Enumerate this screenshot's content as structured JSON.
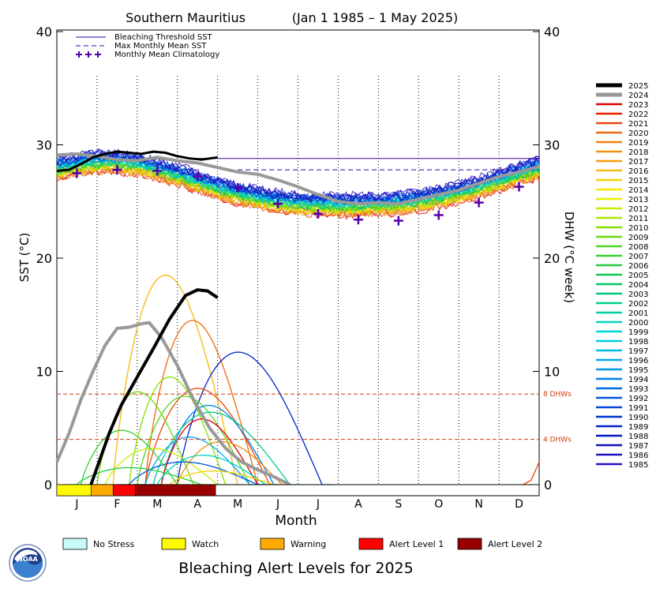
{
  "chart_data": {
    "type": "line",
    "title": "Southern Mauritius",
    "date_range": "(Jan 1 1985 – 1 May 2025)",
    "xlabel": "Month",
    "ylabel_left": "SST (°C)",
    "ylabel_right": "DHW (°C week)",
    "ylim": [
      0,
      40
    ],
    "yticks": [
      "0",
      "10",
      "20",
      "30",
      "40"
    ],
    "months": [
      "J",
      "F",
      "M",
      "A",
      "M",
      "J",
      "J",
      "A",
      "S",
      "O",
      "N",
      "D"
    ],
    "legend_top": [
      {
        "label": "Bleaching Threshold SST",
        "color": "#3300aa",
        "style": "solid"
      },
      {
        "label": "Max Monthly Mean SST",
        "color": "#3300aa",
        "style": "dashed"
      },
      {
        "label": "Monthly Mean Climatology",
        "color": "#5500aa",
        "style": "plus"
      }
    ],
    "reference_lines": [
      {
        "label": "8 DHWs",
        "value": 8,
        "color": "#d04010"
      },
      {
        "label": "4 DHWs",
        "value": 4,
        "color": "#d04010"
      }
    ],
    "bleaching_threshold_sst": 28.8,
    "max_monthly_mean_sst": 27.8,
    "climatology": [
      {
        "month": 0.5,
        "sst": 27.5
      },
      {
        "month": 1.5,
        "sst": 27.8
      },
      {
        "month": 2.5,
        "sst": 27.7
      },
      {
        "month": 3.5,
        "sst": 27.2
      },
      {
        "month": 4.5,
        "sst": 26.2
      },
      {
        "month": 5.5,
        "sst": 24.8
      },
      {
        "month": 6.5,
        "sst": 23.9
      },
      {
        "month": 7.5,
        "sst": 23.4
      },
      {
        "month": 8.5,
        "sst": 23.3
      },
      {
        "month": 9.5,
        "sst": 23.8
      },
      {
        "month": 10.5,
        "sst": 24.9
      },
      {
        "month": 11.5,
        "sst": 26.3
      }
    ],
    "year_legend": [
      {
        "year": "2025",
        "color": "#000000"
      },
      {
        "year": "2024",
        "color": "#999999"
      },
      {
        "year": "2023",
        "color": "#dd0000"
      },
      {
        "year": "2022",
        "color": "#e62000"
      },
      {
        "year": "2021",
        "color": "#e84810"
      },
      {
        "year": "2020",
        "color": "#ec6a10"
      },
      {
        "year": "2019",
        "color": "#f07f10"
      },
      {
        "year": "2018",
        "color": "#f49010"
      },
      {
        "year": "2017",
        "color": "#f7a010"
      },
      {
        "year": "2016",
        "color": "#f7b810"
      },
      {
        "year": "2015",
        "color": "#f7d000"
      },
      {
        "year": "2014",
        "color": "#f4e800"
      },
      {
        "year": "2013",
        "color": "#e8f000"
      },
      {
        "year": "2012",
        "color": "#c8ee00"
      },
      {
        "year": "2011",
        "color": "#a8e800"
      },
      {
        "year": "2010",
        "color": "#88e000"
      },
      {
        "year": "2009",
        "color": "#6ada10"
      },
      {
        "year": "2008",
        "color": "#50d620"
      },
      {
        "year": "2007",
        "color": "#38d030"
      },
      {
        "year": "2006",
        "color": "#22cc40"
      },
      {
        "year": "2005",
        "color": "#10c850"
      },
      {
        "year": "2004",
        "color": "#00c660"
      },
      {
        "year": "2003",
        "color": "#00c878"
      },
      {
        "year": "2002",
        "color": "#00cc90"
      },
      {
        "year": "2001",
        "color": "#00d0a8"
      },
      {
        "year": "2000",
        "color": "#00d4c0"
      },
      {
        "year": "1999",
        "color": "#00d6d6"
      },
      {
        "year": "1998",
        "color": "#00cce6"
      },
      {
        "year": "1997",
        "color": "#00bcec"
      },
      {
        "year": "1996",
        "color": "#00aaf0"
      },
      {
        "year": "1995",
        "color": "#0096ee"
      },
      {
        "year": "1994",
        "color": "#0080ea"
      },
      {
        "year": "1993",
        "color": "#006ae4"
      },
      {
        "year": "1992",
        "color": "#0056de"
      },
      {
        "year": "1991",
        "color": "#0044d8"
      },
      {
        "year": "1990",
        "color": "#0034d0"
      },
      {
        "year": "1989",
        "color": "#0026c8"
      },
      {
        "year": "1988",
        "color": "#0018c0"
      },
      {
        "year": "1987",
        "color": "#1010bc"
      },
      {
        "year": "1986",
        "color": "#2010c0"
      },
      {
        "year": "1985",
        "color": "#3010c6"
      }
    ],
    "sst_2025": [
      {
        "month": 0.0,
        "sst": 27.7
      },
      {
        "month": 0.3,
        "sst": 27.8
      },
      {
        "month": 0.6,
        "sst": 28.3
      },
      {
        "month": 0.9,
        "sst": 28.9
      },
      {
        "month": 1.2,
        "sst": 29.2
      },
      {
        "month": 1.5,
        "sst": 29.4
      },
      {
        "month": 1.8,
        "sst": 29.3
      },
      {
        "month": 2.1,
        "sst": 29.2
      },
      {
        "month": 2.4,
        "sst": 29.4
      },
      {
        "month": 2.7,
        "sst": 29.3
      },
      {
        "month": 3.0,
        "sst": 29.0
      },
      {
        "month": 3.3,
        "sst": 28.8
      },
      {
        "month": 3.6,
        "sst": 28.7
      },
      {
        "month": 4.0,
        "sst": 28.9
      }
    ],
    "sst_2024": [
      {
        "month": 0.0,
        "sst": 29.1
      },
      {
        "month": 0.5,
        "sst": 29.2
      },
      {
        "month": 1.0,
        "sst": 29.0
      },
      {
        "month": 1.5,
        "sst": 28.7
      },
      {
        "month": 2.0,
        "sst": 28.6
      },
      {
        "month": 2.5,
        "sst": 28.9
      },
      {
        "month": 3.0,
        "sst": 28.6
      },
      {
        "month": 3.5,
        "sst": 28.4
      },
      {
        "month": 4.0,
        "sst": 28.0
      },
      {
        "month": 4.5,
        "sst": 27.6
      },
      {
        "month": 5.0,
        "sst": 27.4
      },
      {
        "month": 5.5,
        "sst": 26.9
      },
      {
        "month": 6.0,
        "sst": 26.3
      },
      {
        "month": 6.5,
        "sst": 25.6
      },
      {
        "month": 7.0,
        "sst": 25.0
      },
      {
        "month": 7.5,
        "sst": 24.8
      },
      {
        "month": 8.0,
        "sst": 24.9
      },
      {
        "month": 8.5,
        "sst": 24.8
      },
      {
        "month": 9.0,
        "sst": 25.2
      },
      {
        "month": 9.5,
        "sst": 25.6
      },
      {
        "month": 10.0,
        "sst": 26.0
      },
      {
        "month": 10.5,
        "sst": 26.6
      },
      {
        "month": 11.0,
        "sst": 27.2
      },
      {
        "month": 11.5,
        "sst": 27.6
      },
      {
        "month": 12.0,
        "sst": 28.1
      }
    ],
    "dhw_2025": [
      {
        "month": 0.85,
        "dhw": 0
      },
      {
        "month": 1.0,
        "dhw": 1.5
      },
      {
        "month": 1.3,
        "dhw": 4.5
      },
      {
        "month": 1.6,
        "dhw": 7.0
      },
      {
        "month": 2.0,
        "dhw": 9.5
      },
      {
        "month": 2.4,
        "dhw": 12.0
      },
      {
        "month": 2.8,
        "dhw": 14.6
      },
      {
        "month": 3.2,
        "dhw": 16.7
      },
      {
        "month": 3.5,
        "dhw": 17.2
      },
      {
        "month": 3.75,
        "dhw": 17.1
      },
      {
        "month": 4.0,
        "dhw": 16.5
      }
    ],
    "dhw_2024": [
      {
        "month": 0.0,
        "dhw": 2.0
      },
      {
        "month": 0.3,
        "dhw": 4.5
      },
      {
        "month": 0.6,
        "dhw": 7.5
      },
      {
        "month": 0.9,
        "dhw": 10.0
      },
      {
        "month": 1.2,
        "dhw": 12.3
      },
      {
        "month": 1.5,
        "dhw": 13.8
      },
      {
        "month": 1.8,
        "dhw": 13.9
      },
      {
        "month": 2.1,
        "dhw": 14.2
      },
      {
        "month": 2.3,
        "dhw": 14.3
      },
      {
        "month": 2.6,
        "dhw": 13.0
      },
      {
        "month": 3.0,
        "dhw": 10.5
      },
      {
        "month": 3.4,
        "dhw": 7.5
      },
      {
        "month": 3.8,
        "dhw": 5.0
      },
      {
        "month": 4.2,
        "dhw": 3.2
      },
      {
        "month": 4.6,
        "dhw": 2.0
      },
      {
        "month": 5.0,
        "dhw": 1.3
      },
      {
        "month": 5.4,
        "dhw": 0.7
      },
      {
        "month": 5.8,
        "dhw": 0
      }
    ],
    "alert_bar_2025": [
      {
        "level": "Watch",
        "from": 0.0,
        "to": 0.85
      },
      {
        "level": "Warning",
        "from": 0.85,
        "to": 1.4
      },
      {
        "level": "Alert Level 1",
        "from": 1.4,
        "to": 1.95
      },
      {
        "level": "Alert Level 2",
        "from": 1.95,
        "to": 3.95
      }
    ],
    "alert_levels": [
      {
        "label": "No Stress",
        "color": "#c8fafa"
      },
      {
        "label": "Watch",
        "color": "#fffa00"
      },
      {
        "label": "Warning",
        "color": "#ffaa00"
      },
      {
        "label": "Alert Level 1",
        "color": "#ff0000"
      },
      {
        "label": "Alert Level 2",
        "color": "#990000"
      }
    ],
    "bottom_title": "Bleaching Alert Levels for 2025",
    "logo_text": "NOAA"
  }
}
